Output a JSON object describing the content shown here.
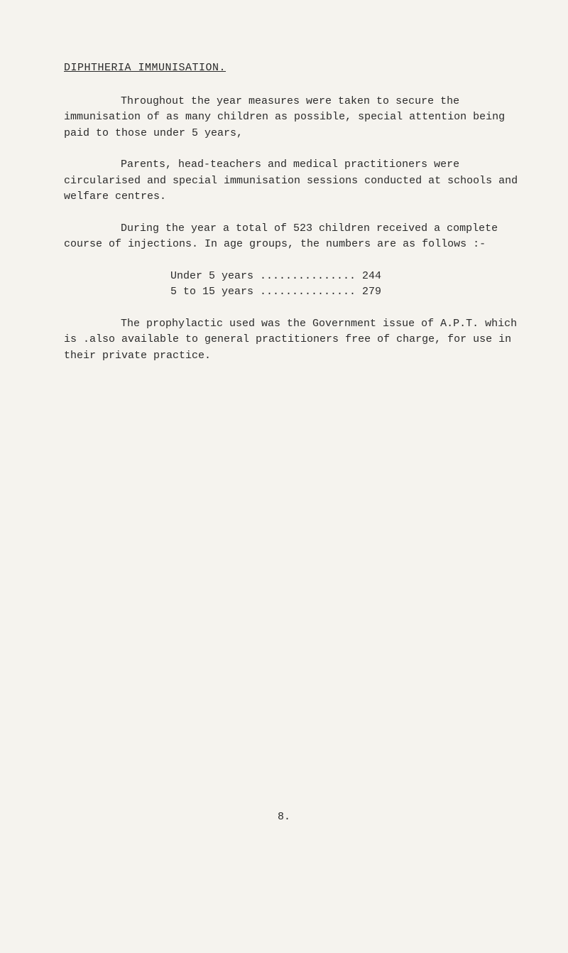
{
  "document": {
    "title": "DIPHTHERIA IMMUNISATION.",
    "paragraphs": {
      "p1": "Throughout the year measures were taken to secure the immunisation of as many children as possible, special attention being paid to those under 5 years,",
      "p2": "Parents, head-teachers and medical practitioners were circularised and special immunisation sessions conducted at schools and welfare centres.",
      "p3": "During the year a total of 523 children received a complete course of injections.  In age groups, the numbers are as follows :-",
      "p4": "The prophylactic used was the Government issue of A.P.T. which is .also available to general practitioners free of charge, for use in their private practice."
    },
    "data": {
      "line1": "Under 5 years ............... 244",
      "line2": "5 to 15 years ............... 279"
    },
    "page_number": "8.",
    "colors": {
      "background": "#f5f3ee",
      "text": "#2a2a2a"
    },
    "typography": {
      "font_family": "Courier New",
      "font_size": 15,
      "line_height": 1.5
    }
  }
}
